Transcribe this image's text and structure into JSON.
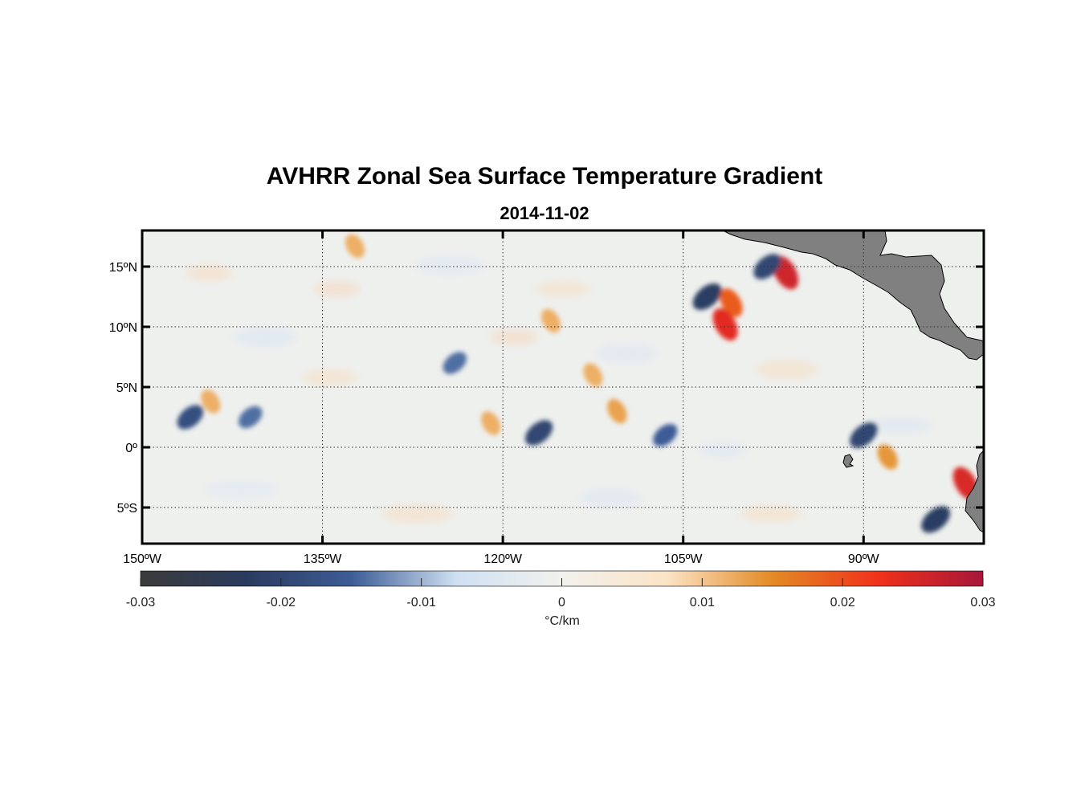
{
  "chart_data": {
    "type": "heatmap",
    "title": "AVHRR Zonal Sea Surface Temperature Gradient",
    "subtitle": "2014-11-02",
    "x_ticks": [
      -150,
      -135,
      -120,
      -105,
      -90
    ],
    "x_tick_labels": [
      "150ºW",
      "135ºW",
      "120ºW",
      "105ºW",
      "90ºW"
    ],
    "y_ticks": [
      15,
      10,
      5,
      0,
      -5
    ],
    "y_tick_labels": [
      "15ºN",
      "10ºN",
      "5ºN",
      "0º",
      "5ºS"
    ],
    "xlim": [
      -150,
      -80
    ],
    "ylim": [
      -8,
      18
    ],
    "grid": true,
    "colorbar": {
      "range": [
        -0.03,
        0.03
      ],
      "ticks": [
        -0.03,
        -0.02,
        -0.01,
        0,
        0.01,
        0.02,
        0.03
      ],
      "tick_labels": [
        "-0.03",
        "-0.02",
        "-0.01",
        "0",
        "0.01",
        "0.02",
        "0.03"
      ],
      "label": "°C/km",
      "colors": [
        "#3b3b3b",
        "#2a3b5e",
        "#3d5c96",
        "#cfe0f2",
        "#f2f2ee",
        "#fbe3c5",
        "#e38a25",
        "#f0321a",
        "#a8163a"
      ]
    },
    "features": [
      {
        "lon": -132.3,
        "lat": 16.7,
        "value": 0.012
      },
      {
        "lon": -124.0,
        "lat": 7.0,
        "value": -0.014
      },
      {
        "lon": -121.0,
        "lat": 2.0,
        "value": 0.012
      },
      {
        "lon": -117.0,
        "lat": 1.2,
        "value": -0.02
      },
      {
        "lon": -116.0,
        "lat": 10.5,
        "value": 0.012
      },
      {
        "lon": -112.5,
        "lat": 6.0,
        "value": 0.012
      },
      {
        "lon": -110.5,
        "lat": 3.0,
        "value": 0.013
      },
      {
        "lon": -106.5,
        "lat": 1.0,
        "value": -0.015
      },
      {
        "lon": -103.0,
        "lat": 12.5,
        "value": -0.022
      },
      {
        "lon": -101.0,
        "lat": 12.0,
        "value": 0.019
      },
      {
        "lon": -101.5,
        "lat": 10.2,
        "value": 0.024
      },
      {
        "lon": -96.5,
        "lat": 14.5,
        "value": 0.026
      },
      {
        "lon": -98.0,
        "lat": 15.0,
        "value": -0.02
      },
      {
        "lon": -90.0,
        "lat": 1.0,
        "value": -0.02
      },
      {
        "lon": -88.0,
        "lat": -0.8,
        "value": 0.014
      },
      {
        "lon": -84.0,
        "lat": -6.0,
        "value": -0.022
      },
      {
        "lon": -81.5,
        "lat": -3.0,
        "value": 0.025
      },
      {
        "lon": -146.0,
        "lat": 2.5,
        "value": -0.018
      },
      {
        "lon": -141.0,
        "lat": 2.5,
        "value": -0.014
      },
      {
        "lon": -144.3,
        "lat": 3.8,
        "value": 0.012
      }
    ],
    "land_color": "#808080"
  }
}
